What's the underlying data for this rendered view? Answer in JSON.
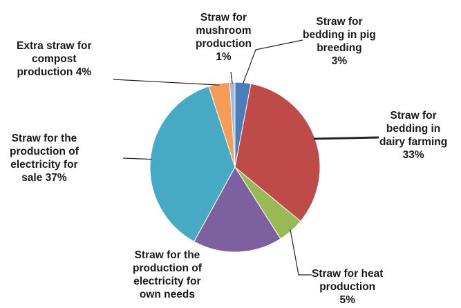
{
  "chart_data": {
    "type": "pie",
    "title": "",
    "legend": "none",
    "slices": [
      {
        "name": "Straw for bedding in pig breeding",
        "value": 3,
        "color": "#4a7ebb",
        "label": [
          "Straw for",
          "bedding in pig",
          "breeding",
          "3%"
        ]
      },
      {
        "name": "Straw for bedding in dairy farming",
        "value": 33,
        "color": "#be4b48",
        "label": [
          "Straw for",
          "bedding in",
          "dairy farming",
          "33%"
        ]
      },
      {
        "name": "Straw for heat production",
        "value": 5,
        "color": "#98b954",
        "label": [
          "Straw for heat",
          "production",
          "5%"
        ]
      },
      {
        "name": "Straw for the production of electricity for own needs",
        "value": 17,
        "color": "#7d60a0",
        "label": [
          "Straw for the",
          "production of",
          "electricity for",
          "own needs"
        ]
      },
      {
        "name": "Straw for the production of electricity for sale",
        "value": 37,
        "color": "#46aac5",
        "label": [
          "Straw for the",
          "production of",
          "electricity for",
          "sale 37%"
        ]
      },
      {
        "name": "Extra straw for compost production",
        "value": 4,
        "color": "#f59d56",
        "label": [
          "Extra straw for",
          "compost",
          "production 4%"
        ]
      },
      {
        "name": "Straw for mushroom production",
        "value": 1,
        "color": "#a5b6d6",
        "label": [
          "Straw for",
          "mushroom",
          "production",
          "1%"
        ]
      }
    ]
  }
}
